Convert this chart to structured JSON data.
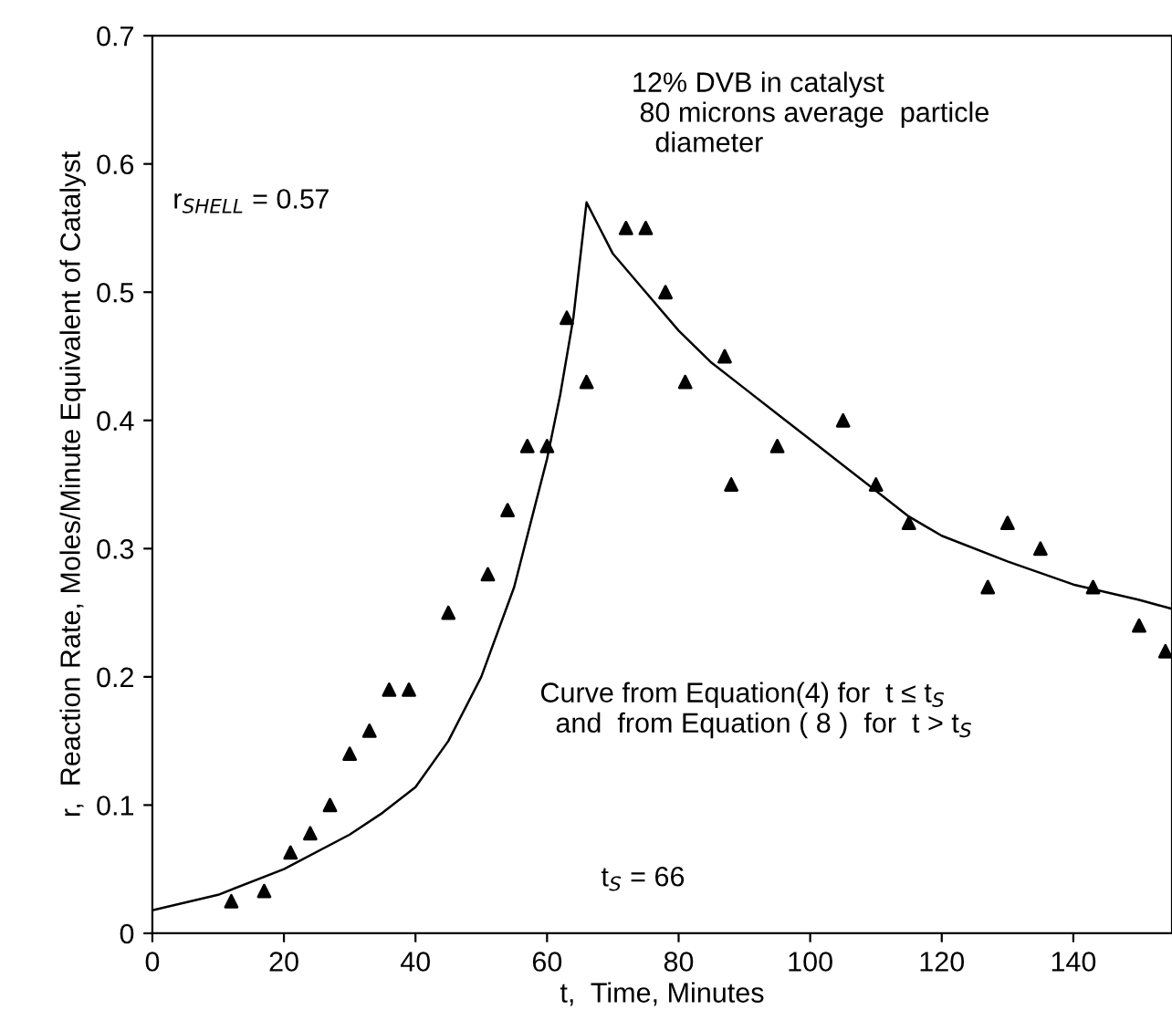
{
  "chart_data": {
    "type": "scatter",
    "xlabel": "t,  Time, Minutes",
    "ylabel": "r,  Reaction Rate, Moles/Minute Equivalent of Catalyst",
    "xlim": [
      0,
      155
    ],
    "ylim": [
      0,
      0.7
    ],
    "xticks": [
      0,
      20,
      40,
      60,
      80,
      100,
      120,
      140
    ],
    "yticks": [
      0,
      0.1,
      0.2,
      0.3,
      0.4,
      0.5,
      0.6,
      0.7
    ],
    "grid": false,
    "series": [
      {
        "marker": "triangle",
        "color": "#000000",
        "x": [
          12,
          17,
          21,
          24,
          27,
          30,
          33,
          36,
          39,
          45,
          51,
          54,
          57,
          60,
          63,
          66,
          72,
          75,
          78,
          81,
          87,
          88,
          95,
          105,
          110,
          115,
          127,
          130,
          135,
          143,
          150,
          154
        ],
        "values": [
          0.025,
          0.033,
          0.063,
          0.078,
          0.1,
          0.14,
          0.158,
          0.19,
          0.19,
          0.25,
          0.28,
          0.33,
          0.38,
          0.38,
          0.48,
          0.43,
          0.55,
          0.55,
          0.5,
          0.43,
          0.45,
          0.35,
          0.38,
          0.4,
          0.35,
          0.32,
          0.27,
          0.32,
          0.3,
          0.27,
          0.24,
          0.22
        ]
      },
      {
        "type": "line",
        "color": "#000000",
        "x": [
          0,
          10,
          20,
          30,
          35,
          40,
          45,
          50,
          55,
          58,
          60,
          62,
          64,
          66,
          68,
          70,
          75,
          80,
          85,
          90,
          95,
          100,
          110,
          115,
          120,
          130,
          140,
          150,
          155
        ],
        "values": [
          0.018,
          0.03,
          0.05,
          0.077,
          0.094,
          0.114,
          0.15,
          0.2,
          0.27,
          0.33,
          0.37,
          0.42,
          0.48,
          0.57,
          0.55,
          0.53,
          0.5,
          0.47,
          0.445,
          0.425,
          0.405,
          0.385,
          0.345,
          0.325,
          0.31,
          0.29,
          0.272,
          0.26,
          0.253
        ]
      }
    ],
    "annotations": [
      "r$_{SHELL}$ = 0.57",
      "t$_{S}$ = 66",
      "12% DVB in catalyst\n 80 microns average  particle\n   diameter",
      "Curve from Equation(4) for  t ≤ t$_{S}$\n  and  from Equation ( 8 )  for  t > t$_{S}$"
    ]
  }
}
